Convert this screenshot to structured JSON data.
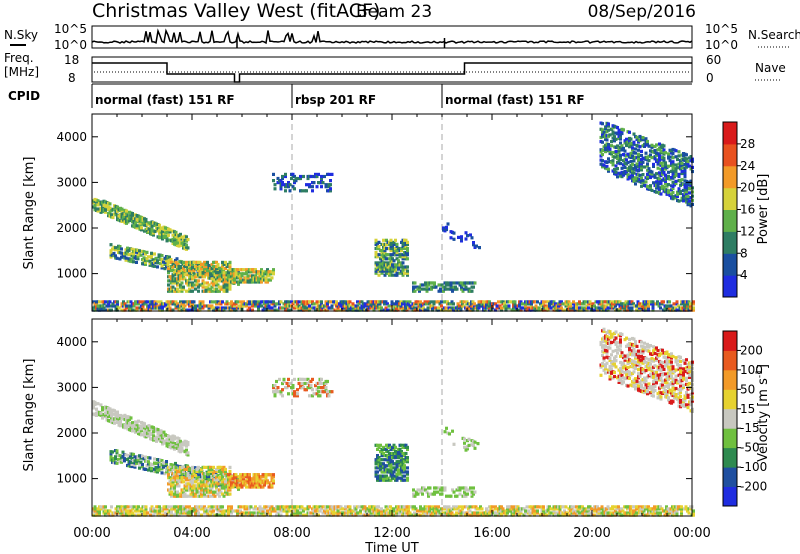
{
  "header": {
    "title": "Christmas Valley West (fitACF)",
    "beam": "Beam 23",
    "date": "08/Sep/2016"
  },
  "top_panels": {
    "nsky_label": "N.Sky",
    "nsearch_label": "N.Search",
    "nsky_ticks": [
      "10^5",
      "10^0"
    ],
    "nsearch_ticks": [
      "10^5",
      "10^0"
    ],
    "freq_label": "Freq.",
    "freq_unit": "[MHz]",
    "freq_ticks": [
      "18",
      "8"
    ],
    "nave_label": "Nave",
    "nave_ticks": [
      "60",
      "0"
    ],
    "cpid_label": "CPID",
    "cpid_segments": [
      {
        "label": "normal (fast) 151 RF",
        "start_h": 0,
        "end_h": 8
      },
      {
        "label": "rbsp 201 RF",
        "start_h": 8,
        "end_h": 14
      },
      {
        "label": "normal (fast) 151 RF",
        "start_h": 14,
        "end_h": 24
      }
    ]
  },
  "chart_data": [
    {
      "type": "heatmap",
      "name": "power-panel",
      "ylabel": "Slant Range [km]",
      "ylim": [
        180,
        4500
      ],
      "yticks": [
        "4000",
        "3000",
        "2000",
        "1000"
      ],
      "xlim_hours": [
        0,
        24
      ],
      "colorbar_label": "Power [dB]",
      "colorbar_ticks": [
        "28",
        "24",
        "20",
        "16",
        "12",
        "8",
        "4"
      ],
      "colors": [
        "#1f2de0",
        "#1a4fa0",
        "#2e7d63",
        "#5fb04a",
        "#d6d23a",
        "#f29a28",
        "#e8511f",
        "#d91a1a"
      ],
      "echo_regions": [
        {
          "t0": 0.0,
          "t1": 3.8,
          "r0": 2450,
          "r1": 2750,
          "shift": -900,
          "density": 0.55,
          "levels": [
            2,
            3,
            4
          ]
        },
        {
          "t0": 0.7,
          "t1": 5.8,
          "r0": 1400,
          "r1": 1700,
          "shift": -600,
          "density": 0.45,
          "levels": [
            1,
            2,
            3,
            4
          ]
        },
        {
          "t0": 3.0,
          "t1": 5.5,
          "r0": 650,
          "r1": 1300,
          "shift": 0,
          "density": 0.55,
          "levels": [
            2,
            3,
            4,
            5
          ]
        },
        {
          "t0": 5.4,
          "t1": 7.2,
          "r0": 850,
          "r1": 1150,
          "shift": 0,
          "density": 0.6,
          "levels": [
            2,
            3,
            4,
            5
          ]
        },
        {
          "t0": 7.2,
          "t1": 9.6,
          "r0": 2850,
          "r1": 3250,
          "shift": 0,
          "density": 0.25,
          "levels": [
            0,
            1,
            2
          ]
        },
        {
          "t0": 11.3,
          "t1": 12.6,
          "r0": 1000,
          "r1": 1800,
          "shift": 0,
          "density": 0.5,
          "levels": [
            1,
            2,
            3,
            4
          ]
        },
        {
          "t0": 12.8,
          "t1": 15.3,
          "r0": 650,
          "r1": 850,
          "shift": 0,
          "density": 0.35,
          "levels": [
            1,
            2,
            3
          ]
        },
        {
          "t0": 14.0,
          "t1": 15.5,
          "r0": 1900,
          "r1": 2200,
          "shift": -400,
          "density": 0.15,
          "levels": [
            0,
            1
          ]
        },
        {
          "t0": 20.3,
          "t1": 24.0,
          "r0": 3300,
          "r1": 4400,
          "shift": -800,
          "density": 0.35,
          "levels": [
            0,
            1,
            2,
            3
          ]
        },
        {
          "t0": 0.0,
          "t1": 24.0,
          "r0": 190,
          "r1": 420,
          "shift": 0,
          "density": 0.55,
          "levels": [
            0,
            1,
            2,
            3,
            4,
            5,
            6
          ]
        }
      ]
    },
    {
      "type": "heatmap",
      "name": "velocity-panel",
      "ylabel": "Slant Range [km]",
      "xlabel": "Time UT",
      "ylim": [
        180,
        4500
      ],
      "yticks": [
        "4000",
        "3000",
        "2000",
        "1000"
      ],
      "xticks": [
        "00:00",
        "04:00",
        "08:00",
        "12:00",
        "16:00",
        "20:00",
        "00:00"
      ],
      "xlim_hours": [
        0,
        24
      ],
      "colorbar_label": "Velocity [m s",
      "colorbar_unit_sup": "-1",
      "colorbar_ticks": [
        "200",
        "100",
        "50",
        "15",
        "-15",
        "-50",
        "-100",
        "-200"
      ],
      "colors": [
        "#1f2de0",
        "#1f4fa0",
        "#2e8a4f",
        "#6fc03f",
        "#c8c8c0",
        "#e6d230",
        "#f29a28",
        "#e85a1f",
        "#d91a1a"
      ],
      "echo_regions": [
        {
          "t0": 0.0,
          "t1": 3.8,
          "r0": 2450,
          "r1": 2750,
          "shift": -900,
          "density": 0.55,
          "levels": [
            4,
            4,
            3
          ]
        },
        {
          "t0": 0.7,
          "t1": 5.8,
          "r0": 1400,
          "r1": 1700,
          "shift": -600,
          "density": 0.45,
          "levels": [
            1,
            2,
            3,
            4
          ]
        },
        {
          "t0": 3.0,
          "t1": 5.5,
          "r0": 650,
          "r1": 1300,
          "shift": 0,
          "density": 0.55,
          "levels": [
            4,
            5,
            6,
            3
          ]
        },
        {
          "t0": 5.4,
          "t1": 7.2,
          "r0": 850,
          "r1": 1150,
          "shift": 0,
          "density": 0.6,
          "levels": [
            5,
            6,
            7
          ]
        },
        {
          "t0": 7.2,
          "t1": 9.6,
          "r0": 2850,
          "r1": 3250,
          "shift": 0,
          "density": 0.25,
          "levels": [
            4,
            3,
            7
          ]
        },
        {
          "t0": 11.3,
          "t1": 12.6,
          "r0": 1000,
          "r1": 1800,
          "shift": 0,
          "density": 0.5,
          "levels": [
            1,
            2,
            3
          ]
        },
        {
          "t0": 12.8,
          "t1": 15.3,
          "r0": 650,
          "r1": 850,
          "shift": 0,
          "density": 0.35,
          "levels": [
            3,
            4
          ]
        },
        {
          "t0": 14.0,
          "t1": 15.5,
          "r0": 1900,
          "r1": 2200,
          "shift": -400,
          "density": 0.15,
          "levels": [
            4,
            3
          ]
        },
        {
          "t0": 20.3,
          "t1": 24.0,
          "r0": 3300,
          "r1": 4400,
          "shift": -800,
          "density": 0.35,
          "levels": [
            4,
            4,
            8,
            5
          ]
        },
        {
          "t0": 0.0,
          "t1": 24.0,
          "r0": 190,
          "r1": 420,
          "shift": 0,
          "density": 0.55,
          "levels": [
            3,
            5,
            6,
            4
          ]
        }
      ]
    }
  ]
}
